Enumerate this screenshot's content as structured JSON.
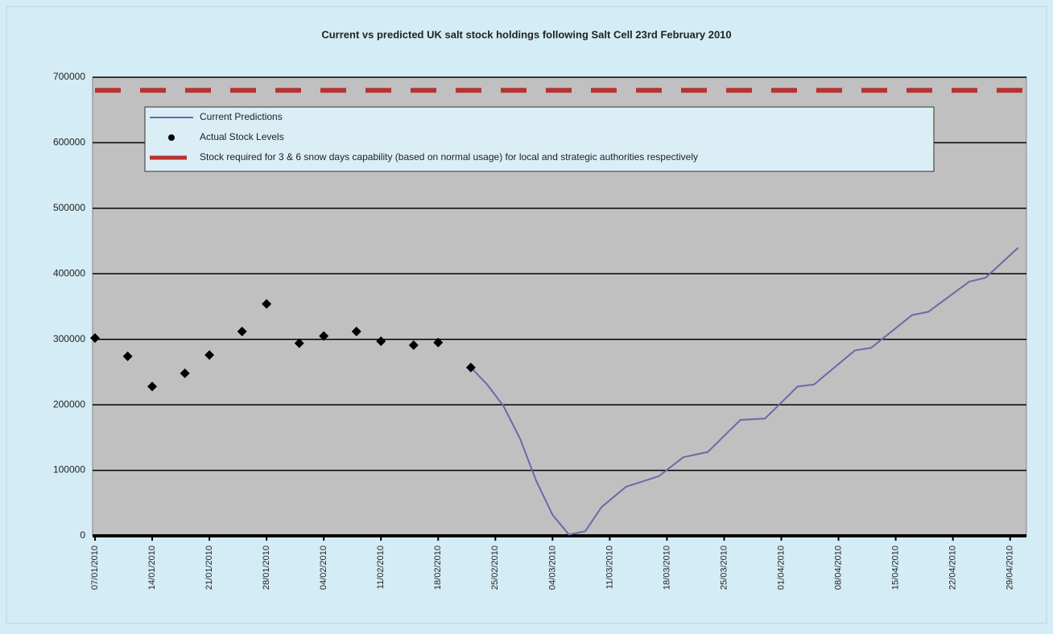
{
  "chart_data": {
    "type": "line",
    "title": "Current vs predicted UK salt stock holdings following Salt Cell 23rd February 2010",
    "xlim": [
      "07/01/2010",
      "01/05/2010"
    ],
    "xticks": [
      "07/01/2010",
      "14/01/2010",
      "21/01/2010",
      "28/01/2010",
      "04/02/2010",
      "11/02/2010",
      "18/02/2010",
      "25/02/2010",
      "04/03/2010",
      "11/03/2010",
      "18/03/2010",
      "25/03/2010",
      "01/04/2010",
      "08/04/2010",
      "15/04/2010",
      "22/04/2010",
      "29/04/2010"
    ],
    "ylim": [
      0,
      700000
    ],
    "yticks": [
      0,
      100000,
      200000,
      300000,
      400000,
      500000,
      600000,
      700000
    ],
    "grid": true,
    "series": [
      {
        "name": "Current Predictions",
        "kind": "line",
        "color": "#6a6aa8",
        "x": [
          "22/02/2010",
          "24/02/2010",
          "26/02/2010",
          "28/02/2010",
          "02/03/2010",
          "04/03/2010",
          "06/03/2010",
          "08/03/2010",
          "10/03/2010",
          "13/03/2010",
          "17/03/2010",
          "20/03/2010",
          "23/03/2010",
          "27/03/2010",
          "30/03/2010",
          "03/04/2010",
          "05/04/2010",
          "10/04/2010",
          "12/04/2010",
          "17/04/2010",
          "19/04/2010",
          "24/04/2010",
          "26/04/2010",
          "30/04/2010"
        ],
        "values": [
          257000,
          231000,
          198000,
          149000,
          84000,
          32000,
          2000,
          7000,
          44000,
          75000,
          91000,
          120000,
          128000,
          177000,
          179000,
          228000,
          231000,
          283000,
          287000,
          337000,
          342000,
          388000,
          394000,
          440000
        ]
      },
      {
        "name": "Actual Stock Levels",
        "kind": "scatter",
        "color": "#000000",
        "x": [
          "07/01/2010",
          "11/01/2010",
          "14/01/2010",
          "18/01/2010",
          "21/01/2010",
          "25/01/2010",
          "28/01/2010",
          "01/02/2010",
          "04/02/2010",
          "08/02/2010",
          "11/02/2010",
          "15/02/2010",
          "18/02/2010",
          "22/02/2010"
        ],
        "values": [
          302000,
          274000,
          228000,
          248000,
          276000,
          312000,
          354000,
          294000,
          305000,
          312000,
          297000,
          291000,
          295000,
          257000
        ]
      },
      {
        "name": "Stock required for 3 & 6 snow days capability (based on normal usage) for local and strategic authorities respectively",
        "kind": "hline",
        "color": "#b83232",
        "values": [
          680000
        ]
      }
    ]
  }
}
